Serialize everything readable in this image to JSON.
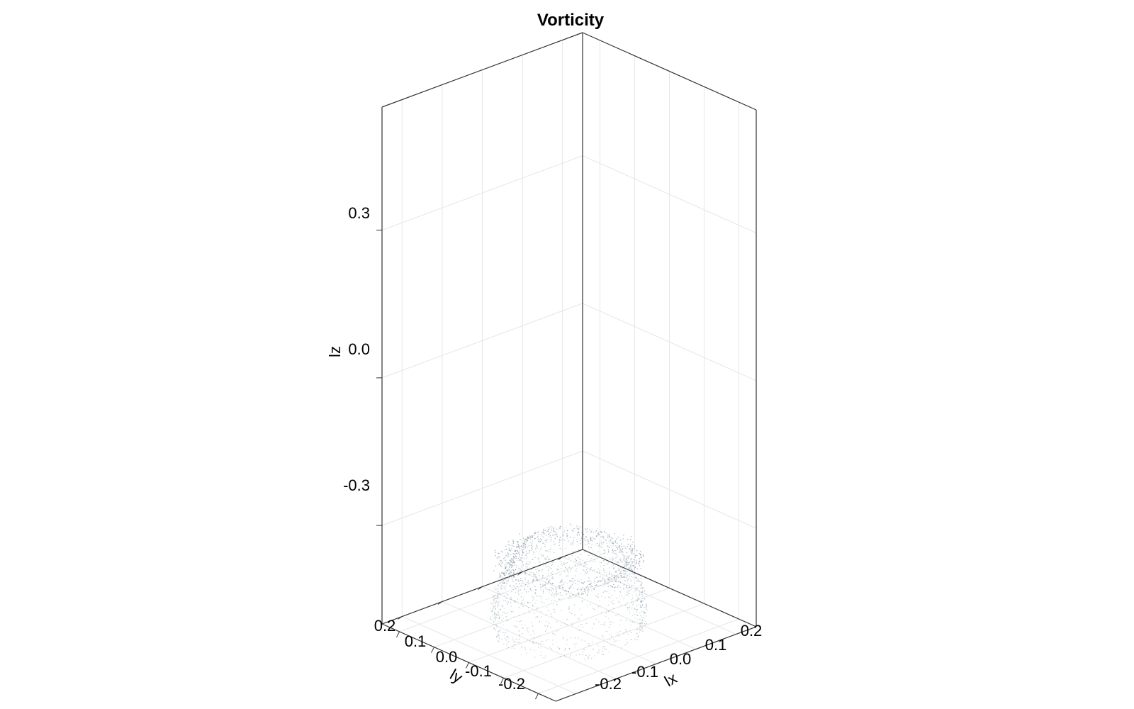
{
  "chart_data": {
    "type": "scatter",
    "subtype": "3d-point-cloud",
    "title": "Vorticity",
    "xlabel": "lx",
    "ylabel": "ly",
    "zlabel": "lz",
    "xticks": [
      "-0.2",
      "-0.1",
      "0.0",
      "0.1",
      "0.2"
    ],
    "yticks": [
      "0.2",
      "0.1",
      "0.0",
      "-0.1",
      "-0.2"
    ],
    "zticks": [
      "0.3",
      "0.0",
      "-0.3"
    ],
    "xlim": [
      -0.25,
      0.25
    ],
    "ylim": [
      -0.25,
      0.25
    ],
    "zlim": [
      -0.5,
      0.55
    ],
    "grid": true,
    "legend": "none",
    "point_color": "#8fa3ab",
    "series": [
      {
        "shape": "vortex-ring shell",
        "center": [
          0.0,
          0.0,
          -0.42
        ],
        "radius": 0.15,
        "height": 0.18,
        "values": []
      }
    ]
  }
}
